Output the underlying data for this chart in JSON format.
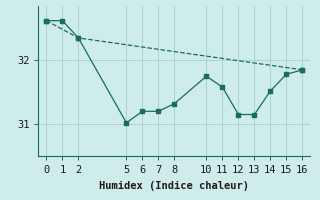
{
  "xlabel": "Humidex (Indice chaleur)",
  "background_color": "#ceecea",
  "line_color": "#1a6b60",
  "grid_color": "#aad4d0",
  "line1_x": [
    0,
    1,
    2,
    5,
    6,
    7,
    8,
    10,
    11,
    12,
    13,
    14,
    15,
    16
  ],
  "line1_y": [
    32.62,
    32.62,
    32.35,
    31.02,
    31.2,
    31.2,
    31.32,
    31.75,
    31.58,
    31.15,
    31.15,
    31.52,
    31.78,
    31.85
  ],
  "line2_x": [
    0,
    2,
    16
  ],
  "line2_y": [
    32.62,
    32.35,
    31.85
  ],
  "xlim": [
    -0.5,
    16.5
  ],
  "ylim": [
    30.5,
    32.85
  ],
  "yticks": [
    31,
    32
  ],
  "xticks": [
    0,
    1,
    2,
    5,
    6,
    7,
    8,
    10,
    11,
    12,
    13,
    14,
    15,
    16
  ],
  "fontsize": 7.5,
  "dpi": 100
}
